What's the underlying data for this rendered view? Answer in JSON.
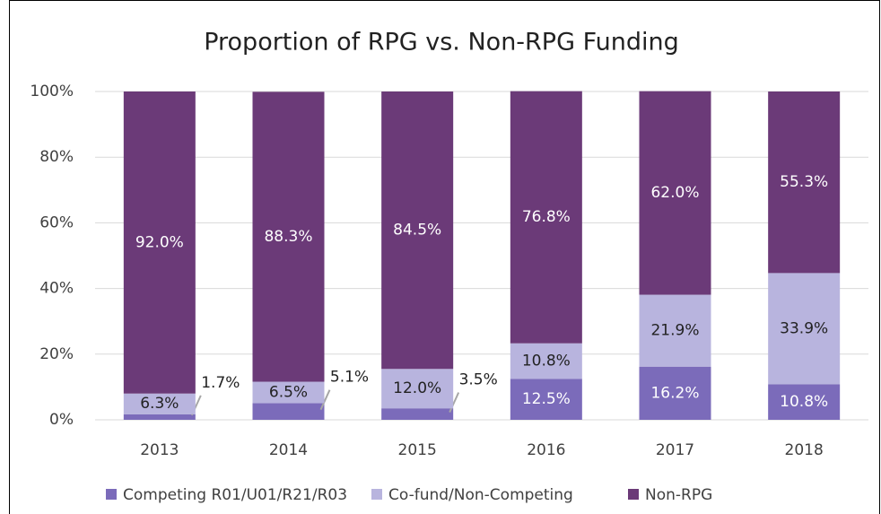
{
  "chart_data": {
    "type": "stacked_bar",
    "title": "Proportion of RPG vs. Non-RPG Funding",
    "categories": [
      "2013",
      "2014",
      "2015",
      "2016",
      "2017",
      "2018"
    ],
    "series": [
      {
        "name": "Competing R01/U01/R21/R03",
        "color": "#7b6bba",
        "values": [
          1.7,
          5.1,
          3.5,
          12.5,
          16.2,
          10.8
        ],
        "value_labels": [
          "1.7%",
          "5.1%",
          "3.5%",
          "12.5%",
          "16.2%",
          "10.8%"
        ]
      },
      {
        "name": "Co-fund/Non-Competing",
        "color": "#b8b4de",
        "values": [
          6.3,
          6.5,
          12.0,
          10.8,
          21.9,
          33.9
        ],
        "value_labels": [
          "6.3%",
          "6.5%",
          "12.0%",
          "10.8%",
          "21.9%",
          "33.9%"
        ]
      },
      {
        "name": "Non-RPG",
        "color": "#6b3a78",
        "values": [
          92.0,
          88.3,
          84.5,
          76.8,
          62.0,
          55.3
        ],
        "value_labels": [
          "92.0%",
          "88.3%",
          "84.5%",
          "76.8%",
          "62.0%",
          "55.3%"
        ]
      }
    ],
    "ylim": [
      0,
      100
    ],
    "yticks": [
      {
        "value": 0,
        "label": "0%"
      },
      {
        "value": 20,
        "label": "20%"
      },
      {
        "value": 40,
        "label": "40%"
      },
      {
        "value": 60,
        "label": "60%"
      },
      {
        "value": 80,
        "label": "80%"
      },
      {
        "value": 100,
        "label": "100%"
      }
    ],
    "grid": true,
    "legend": "bottom"
  }
}
